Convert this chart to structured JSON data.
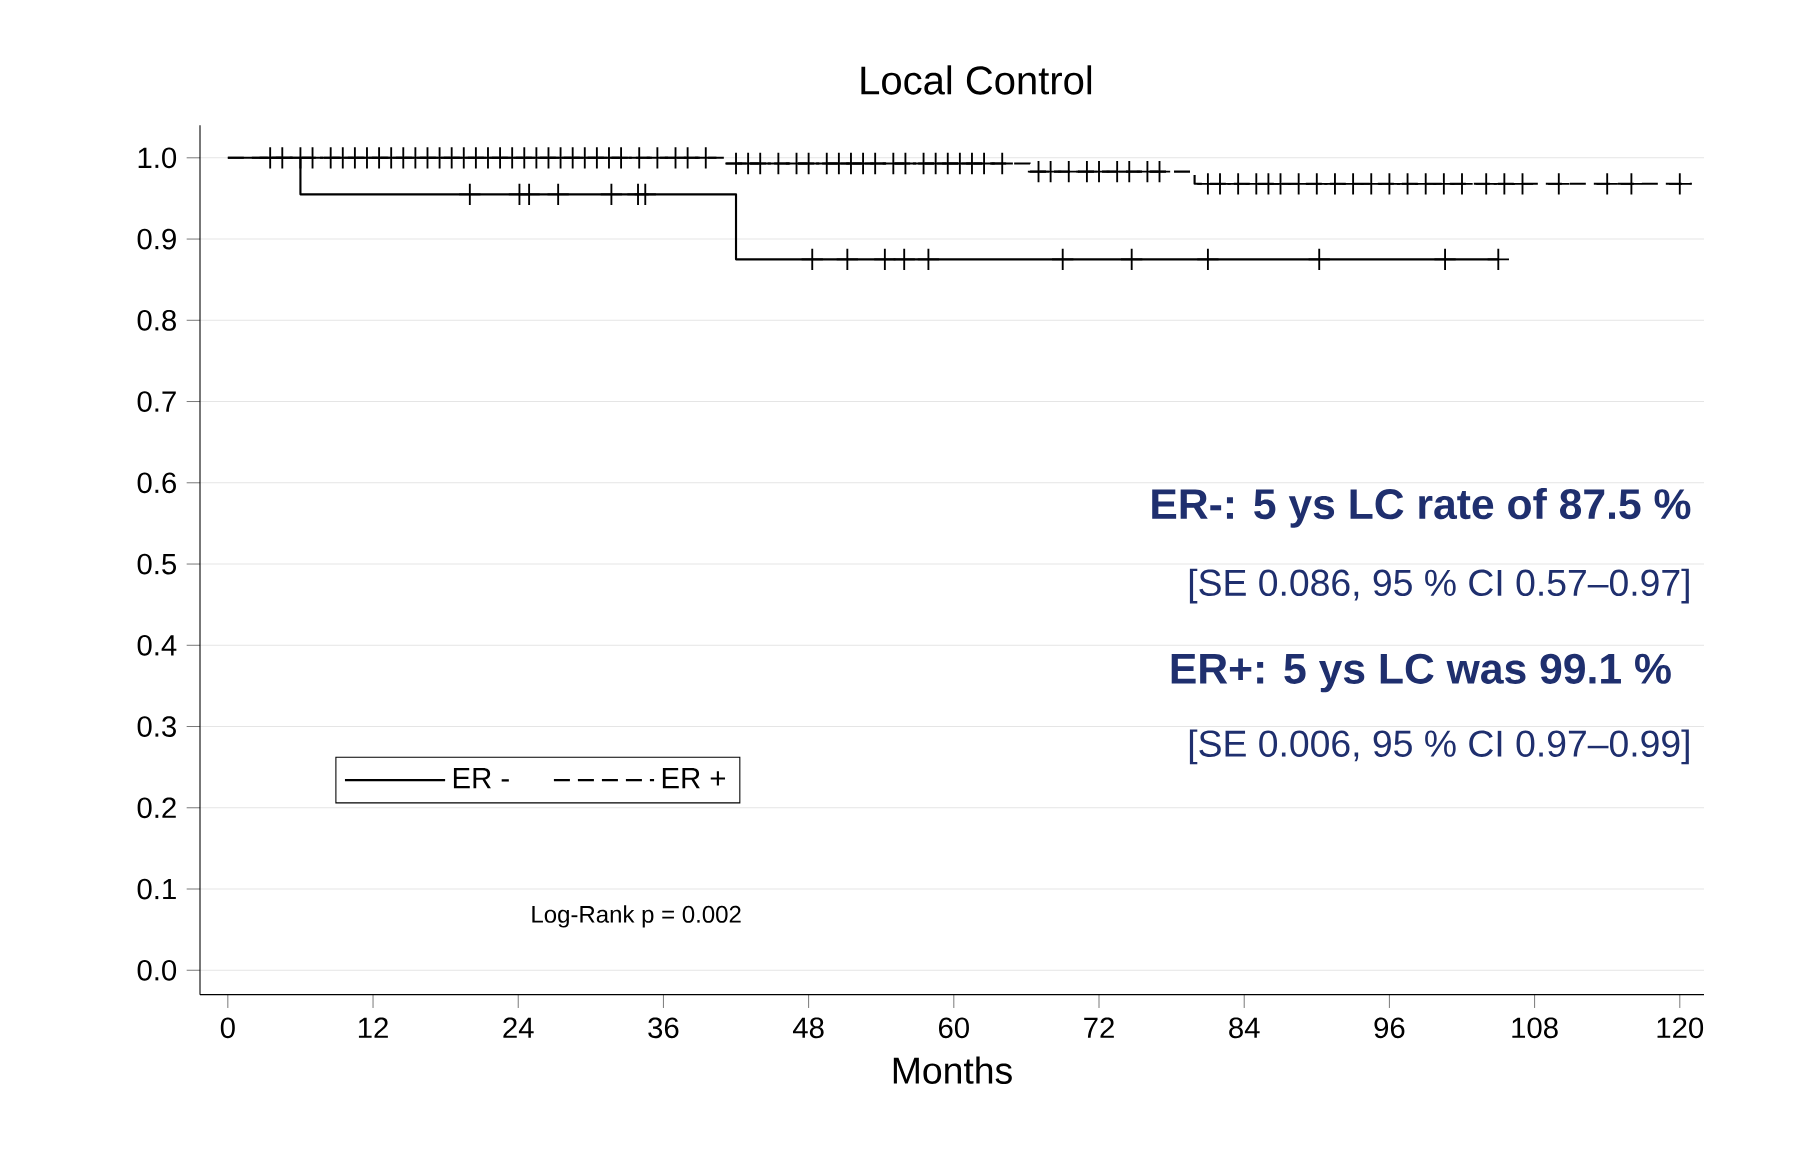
{
  "chart_data": {
    "type": "step",
    "title": "Local Control",
    "xlabel": "Months",
    "xlim": [
      -2.3,
      122
    ],
    "xticks": [
      0,
      12,
      24,
      36,
      48,
      60,
      72,
      84,
      96,
      108,
      120
    ],
    "ylim": [
      -0.03,
      1.04
    ],
    "yticks": [
      {
        "value": 0,
        "label": "0.0"
      },
      {
        "value": 0.1,
        "label": "0.1"
      },
      {
        "value": 0.2,
        "label": "0.2"
      },
      {
        "value": 0.3,
        "label": "0.3"
      },
      {
        "value": 0.4,
        "label": "0.4"
      },
      {
        "value": 0.5,
        "label": "0.5"
      },
      {
        "value": 0.6,
        "label": "0.6"
      },
      {
        "value": 0.7,
        "label": "0.7"
      },
      {
        "value": 0.8,
        "label": "0.8"
      },
      {
        "value": 0.9,
        "label": "0.9"
      },
      {
        "value": 1.0,
        "label": "1.0"
      }
    ],
    "grid": "y",
    "legend": "bottom left",
    "series": [
      {
        "name": "ER -",
        "color": "#000000",
        "line_style": "solid",
        "x": [
          0,
          6,
          42,
          105
        ],
        "values": [
          1.0,
          0.955,
          0.875,
          0.875
        ]
      },
      {
        "name": "ER +",
        "color": "#000000",
        "line_style": "dashed",
        "x": [
          0,
          41.1,
          66.3,
          79.9,
          121
        ],
        "values": [
          1.0,
          0.993,
          0.983,
          0.968,
          0.968
        ]
      },
      {
        "type": "scatter",
        "marker": "cross",
        "color": "#000000",
        "x": [
          20,
          24.1,
          24.9,
          27.3,
          31.7,
          33.9,
          34.5,
          48.3,
          51.2,
          54.3,
          55.9,
          57.9,
          69.0,
          74.7,
          81.0,
          90.2,
          100.6,
          105.0
        ],
        "values": [
          0.955,
          0.955,
          0.955,
          0.955,
          0.955,
          0.955,
          0.955,
          0.875,
          0.875,
          0.875,
          0.875,
          0.875,
          0.875,
          0.875,
          0.875,
          0.875,
          0.875,
          0.875
        ]
      },
      {
        "type": "scatter",
        "marker": "cross",
        "color": "#000000",
        "x": [
          3.5,
          4.5,
          6,
          7,
          8.5,
          9.5,
          10.5,
          11.5,
          12.5,
          13.5,
          14.5,
          15.5,
          16.5,
          17.5,
          18.5,
          19.5,
          20.5,
          21.5,
          22.5,
          23.5,
          24.5,
          25.5,
          26.5,
          27.5,
          28.5,
          29.5,
          30.5,
          31.5,
          32.5,
          34,
          35.5,
          37,
          38,
          39.5,
          42,
          43,
          44,
          45.5,
          47,
          48,
          49.5,
          50.5,
          51.5,
          52.5,
          53.5,
          55,
          56,
          57.5,
          58.5,
          59.5,
          60.5,
          61.5,
          62.5,
          64,
          67,
          68,
          69.5,
          71,
          72,
          73.5,
          74.5,
          76,
          77,
          81,
          82,
          83.5,
          85,
          86,
          87,
          88.5,
          90,
          91.5,
          93,
          94.5,
          96,
          97.5,
          99,
          100.5,
          102,
          104,
          105.5,
          107,
          110,
          114,
          116,
          120
        ],
        "values": [
          1.0,
          1.0,
          1.0,
          1.0,
          1.0,
          1.0,
          1.0,
          1.0,
          1.0,
          1.0,
          1.0,
          1.0,
          1.0,
          1.0,
          1.0,
          1.0,
          1.0,
          1.0,
          1.0,
          1.0,
          1.0,
          1.0,
          1.0,
          1.0,
          1.0,
          1.0,
          1.0,
          1.0,
          1.0,
          1.0,
          1.0,
          1.0,
          1.0,
          1.0,
          0.993,
          0.993,
          0.993,
          0.993,
          0.993,
          0.993,
          0.993,
          0.993,
          0.993,
          0.993,
          0.993,
          0.993,
          0.993,
          0.993,
          0.993,
          0.993,
          0.993,
          0.993,
          0.993,
          0.993,
          0.983,
          0.983,
          0.983,
          0.983,
          0.983,
          0.983,
          0.983,
          0.983,
          0.983,
          0.968,
          0.968,
          0.968,
          0.968,
          0.968,
          0.968,
          0.968,
          0.968,
          0.968,
          0.968,
          0.968,
          0.968,
          0.968,
          0.968,
          0.968,
          0.968,
          0.968,
          0.968,
          0.968,
          0.968,
          0.968,
          0.968,
          0.968
        ]
      }
    ],
    "annotations": [
      "Log-Rank p = 0.002",
      "ER-: 5 ys LC rate of 87.5 %",
      "[SE 0.086, 95 % CI 0.57–0.97]",
      "ER+: 5 ys LC was 99.1 %",
      "[SE 0.006, 95 % CI 0.97–0.99]"
    ]
  }
}
